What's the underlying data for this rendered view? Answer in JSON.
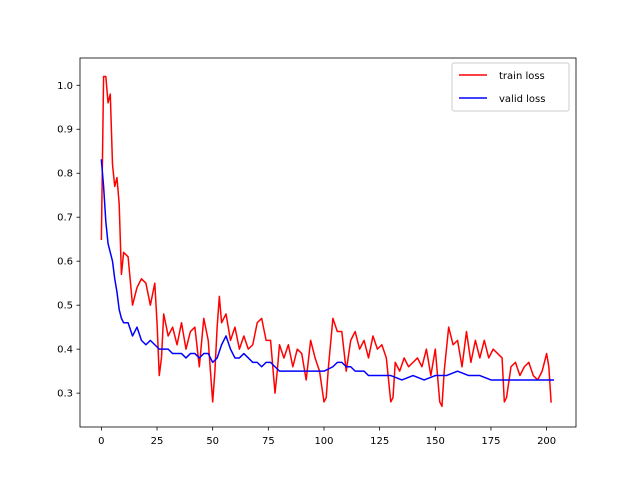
{
  "chart_data": {
    "type": "line",
    "title": "",
    "xlabel": "",
    "ylabel": "",
    "xlim": [
      -9.6,
      213.2
    ],
    "ylim": [
      0.223,
      1.062
    ],
    "x_ticks": [
      0,
      25,
      50,
      75,
      100,
      125,
      150,
      175,
      200
    ],
    "y_ticks": [
      0.3,
      0.4,
      0.5,
      0.6,
      0.7,
      0.8,
      0.9,
      1.0
    ],
    "x_tick_labels": [
      "0",
      "25",
      "50",
      "75",
      "100",
      "125",
      "150",
      "175",
      "200"
    ],
    "y_tick_labels": [
      "0.3",
      "0.4",
      "0.5",
      "0.6",
      "0.7",
      "0.8",
      "0.9",
      "1.0"
    ],
    "grid": false,
    "legend_position": "upper right",
    "series": [
      {
        "name": "train loss",
        "color": "#ff0000",
        "x": [
          0,
          1,
          2,
          3,
          4,
          5,
          6,
          7,
          8,
          9,
          10,
          12,
          14,
          16,
          18,
          20,
          22,
          24,
          25,
          26,
          27,
          28,
          30,
          32,
          34,
          36,
          38,
          40,
          42,
          44,
          46,
          48,
          50,
          51,
          52,
          53,
          54,
          56,
          58,
          60,
          62,
          64,
          66,
          68,
          70,
          72,
          74,
          76,
          78,
          79,
          80,
          82,
          84,
          86,
          88,
          90,
          92,
          94,
          96,
          98,
          100,
          101,
          102,
          104,
          106,
          108,
          110,
          112,
          114,
          116,
          118,
          120,
          122,
          124,
          126,
          128,
          130,
          131,
          132,
          134,
          136,
          138,
          140,
          142,
          144,
          146,
          148,
          150,
          152,
          153,
          154,
          156,
          158,
          160,
          162,
          164,
          166,
          168,
          170,
          172,
          174,
          176,
          178,
          180,
          181,
          182,
          184,
          186,
          188,
          190,
          192,
          194,
          196,
          198,
          200,
          201,
          202
        ],
        "y": [
          0.65,
          1.02,
          1.02,
          0.96,
          0.98,
          0.82,
          0.77,
          0.79,
          0.73,
          0.57,
          0.62,
          0.61,
          0.5,
          0.54,
          0.56,
          0.55,
          0.5,
          0.55,
          0.46,
          0.34,
          0.38,
          0.48,
          0.43,
          0.45,
          0.41,
          0.46,
          0.4,
          0.44,
          0.45,
          0.36,
          0.47,
          0.42,
          0.28,
          0.35,
          0.45,
          0.52,
          0.46,
          0.48,
          0.42,
          0.45,
          0.4,
          0.43,
          0.4,
          0.41,
          0.46,
          0.47,
          0.42,
          0.42,
          0.3,
          0.35,
          0.41,
          0.38,
          0.41,
          0.36,
          0.4,
          0.39,
          0.33,
          0.42,
          0.38,
          0.35,
          0.28,
          0.29,
          0.36,
          0.47,
          0.44,
          0.44,
          0.35,
          0.42,
          0.44,
          0.4,
          0.42,
          0.38,
          0.43,
          0.4,
          0.41,
          0.38,
          0.28,
          0.29,
          0.37,
          0.35,
          0.38,
          0.36,
          0.37,
          0.38,
          0.36,
          0.4,
          0.34,
          0.4,
          0.28,
          0.27,
          0.35,
          0.45,
          0.41,
          0.42,
          0.36,
          0.44,
          0.37,
          0.42,
          0.38,
          0.42,
          0.38,
          0.4,
          0.39,
          0.38,
          0.28,
          0.29,
          0.36,
          0.37,
          0.34,
          0.36,
          0.37,
          0.34,
          0.33,
          0.35,
          0.39,
          0.36,
          0.28
        ]
      },
      {
        "name": "valid loss",
        "color": "#0000ff",
        "x": [
          0,
          1,
          2,
          3,
          4,
          5,
          6,
          7,
          8,
          9,
          10,
          12,
          14,
          16,
          18,
          20,
          22,
          24,
          26,
          28,
          30,
          32,
          34,
          36,
          38,
          40,
          42,
          44,
          46,
          48,
          50,
          52,
          54,
          56,
          58,
          60,
          62,
          64,
          66,
          68,
          70,
          72,
          74,
          76,
          78,
          80,
          85,
          90,
          95,
          100,
          104,
          106,
          108,
          110,
          112,
          114,
          116,
          118,
          120,
          125,
          130,
          135,
          140,
          145,
          150,
          155,
          160,
          165,
          170,
          175,
          180,
          185,
          190,
          195,
          200,
          203
        ],
        "y": [
          0.83,
          0.77,
          0.69,
          0.64,
          0.62,
          0.6,
          0.56,
          0.53,
          0.49,
          0.47,
          0.46,
          0.46,
          0.43,
          0.45,
          0.42,
          0.41,
          0.42,
          0.41,
          0.4,
          0.4,
          0.4,
          0.39,
          0.39,
          0.39,
          0.38,
          0.39,
          0.39,
          0.38,
          0.39,
          0.39,
          0.37,
          0.38,
          0.41,
          0.43,
          0.4,
          0.38,
          0.38,
          0.39,
          0.38,
          0.37,
          0.37,
          0.36,
          0.37,
          0.37,
          0.36,
          0.35,
          0.35,
          0.35,
          0.35,
          0.35,
          0.36,
          0.37,
          0.37,
          0.36,
          0.36,
          0.35,
          0.35,
          0.35,
          0.34,
          0.34,
          0.34,
          0.33,
          0.34,
          0.33,
          0.34,
          0.34,
          0.35,
          0.34,
          0.34,
          0.33,
          0.33,
          0.33,
          0.33,
          0.33,
          0.33,
          0.33
        ]
      }
    ]
  }
}
